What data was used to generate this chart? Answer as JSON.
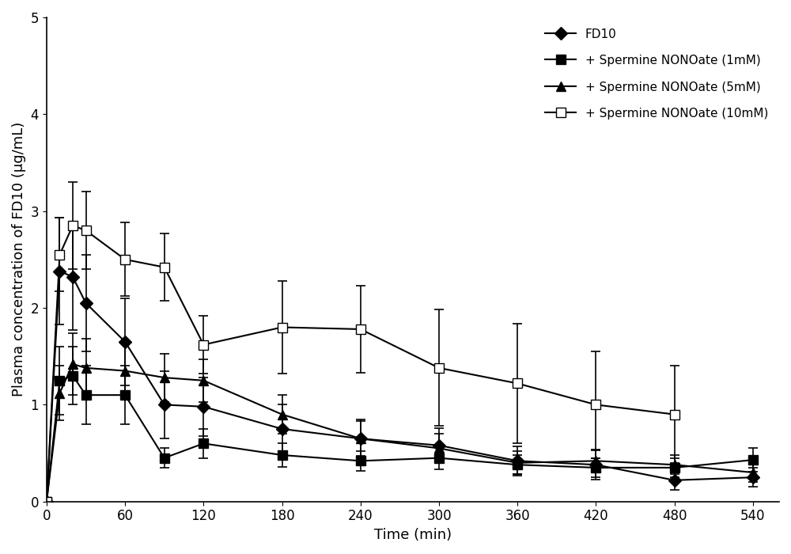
{
  "time": [
    0,
    10,
    20,
    30,
    60,
    90,
    120,
    180,
    240,
    300,
    360,
    420,
    480,
    540
  ],
  "fd10": {
    "y": [
      0,
      2.38,
      2.32,
      2.05,
      1.65,
      1.0,
      0.98,
      0.75,
      0.65,
      0.58,
      0.42,
      0.38,
      0.22,
      0.25
    ],
    "yerr": [
      0,
      0.55,
      0.55,
      0.5,
      0.45,
      0.35,
      0.3,
      0.25,
      0.2,
      0.18,
      0.15,
      0.15,
      0.1,
      0.1
    ]
  },
  "sp1mM": {
    "y": [
      0,
      1.25,
      1.3,
      1.1,
      1.1,
      0.45,
      0.6,
      0.48,
      0.42,
      0.45,
      0.38,
      0.35,
      0.35,
      0.43
    ],
    "yerr": [
      0,
      0.35,
      0.3,
      0.3,
      0.3,
      0.1,
      0.15,
      0.12,
      0.1,
      0.12,
      0.1,
      0.1,
      0.1,
      0.12
    ]
  },
  "sp5mM": {
    "y": [
      0,
      1.12,
      1.42,
      1.38,
      1.35,
      1.28,
      1.25,
      0.9,
      0.65,
      0.55,
      0.4,
      0.42,
      0.38,
      0.3
    ],
    "yerr": [
      0,
      0.28,
      0.32,
      0.3,
      0.28,
      0.25,
      0.22,
      0.2,
      0.18,
      0.15,
      0.12,
      0.12,
      0.1,
      0.1
    ]
  },
  "sp10mM": {
    "y": [
      0,
      2.55,
      2.85,
      2.8,
      2.5,
      2.42,
      1.62,
      1.8,
      1.78,
      1.38,
      1.22,
      1.0,
      0.9,
      null
    ],
    "yerr": [
      0,
      0.38,
      0.45,
      0.4,
      0.38,
      0.35,
      0.3,
      0.48,
      0.45,
      0.6,
      0.62,
      0.55,
      0.5,
      null
    ]
  },
  "xlabel": "Time (min)",
  "ylabel": "Plasma concentration of FD10 (μg/mL)",
  "ylim": [
    0,
    5
  ],
  "xlim": [
    0,
    560
  ],
  "xticks": [
    0,
    60,
    120,
    180,
    240,
    300,
    360,
    420,
    480,
    540
  ],
  "yticks": [
    0,
    1,
    2,
    3,
    4,
    5
  ],
  "legend_labels": [
    "FD10",
    "+ Spermine NONOate (1mM)",
    "+ Spermine NONOate (5mM)",
    "+ Spermine NONOate (10mM)"
  ],
  "line_color": "#000000",
  "markers": [
    "D",
    "s",
    "^",
    "s"
  ],
  "fillstyles": [
    "full",
    "full",
    "full",
    "none"
  ]
}
